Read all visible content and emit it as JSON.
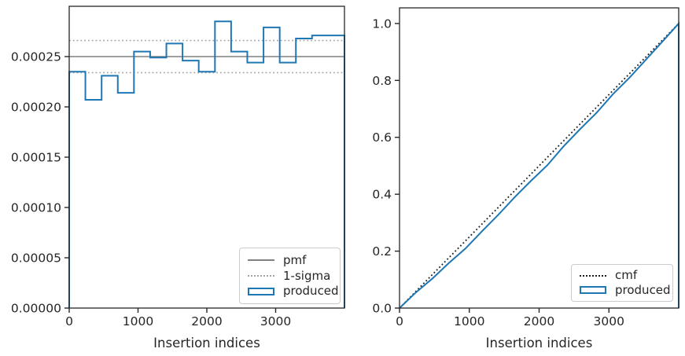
{
  "figure": {
    "background": "#ffffff"
  },
  "colors": {
    "produced": "#1f77b4",
    "pmf": "#808080",
    "sigma": "#a3a3a3",
    "cmf": "#1c1c1c",
    "spine": "#262626",
    "text": "#262626",
    "background": "#ffffff"
  },
  "chart_data": [
    {
      "type": "step",
      "title": "",
      "xlabel": "Insertion indices",
      "ylabel": "",
      "grid": false,
      "xlim": [
        0,
        4000
      ],
      "ylim": [
        0,
        0.0003
      ],
      "xticks": {
        "values": [
          0,
          1000,
          2000,
          3000
        ],
        "labels": [
          "0",
          "1000",
          "2000",
          "3000"
        ]
      },
      "yticks": {
        "values": [
          0,
          5e-05,
          0.0001,
          0.00015,
          0.0002,
          0.00025
        ],
        "labels": [
          "0.00000",
          "0.00005",
          "0.00010",
          "0.00015",
          "0.00020",
          "0.00025"
        ]
      },
      "series": [
        {
          "name": "pmf",
          "style": "hline",
          "linestyle": "solid",
          "color": "#808080",
          "width": 1.5,
          "values": [
            0.00025
          ]
        },
        {
          "name": "1-sigma",
          "style": "hline",
          "linestyle": "dotted",
          "color": "#a3a3a3",
          "width": 1.6,
          "values": [
            0.000234,
            0.000266
          ]
        },
        {
          "name": "produced",
          "style": "step",
          "linestyle": "solid",
          "color": "#1f77b4",
          "width": 2,
          "bin_edges": [
            0,
            235,
            471,
            706,
            941,
            1176,
            1412,
            1647,
            1882,
            2118,
            2353,
            2588,
            2824,
            3059,
            3294,
            3529,
            3765,
            4000
          ],
          "values": [
            0.000235,
            0.000207,
            0.000231,
            0.000214,
            0.000255,
            0.000249,
            0.000263,
            0.000246,
            0.000235,
            0.000285,
            0.000255,
            0.000244,
            0.000279,
            0.000244,
            0.000268,
            0.000271,
            0.000271
          ]
        }
      ],
      "legend": {
        "position": "lower right",
        "entries": [
          {
            "label": "pmf",
            "sample": "solid-line-gray"
          },
          {
            "label": "1-sigma",
            "sample": "dotted-line-gray"
          },
          {
            "label": "produced",
            "sample": "rect-blue"
          }
        ]
      }
    },
    {
      "type": "line",
      "title": "",
      "xlabel": "Insertion indices",
      "ylabel": "",
      "grid": false,
      "xlim": [
        0,
        4000
      ],
      "ylim": [
        0,
        1.055
      ],
      "xticks": {
        "values": [
          0,
          1000,
          2000,
          3000
        ],
        "labels": [
          "0",
          "1000",
          "2000",
          "3000"
        ]
      },
      "yticks": {
        "values": [
          0,
          0.2,
          0.4,
          0.6,
          0.8,
          1.0
        ],
        "labels": [
          "0.0",
          "0.2",
          "0.4",
          "0.6",
          "0.8",
          "1.0"
        ]
      },
      "series": [
        {
          "name": "cmf",
          "style": "line",
          "linestyle": "dotted",
          "color": "#1c1c1c",
          "width": 1.8,
          "x": [
            0,
            4000
          ],
          "y": [
            0,
            1.0
          ]
        },
        {
          "name": "produced",
          "style": "line",
          "linestyle": "solid",
          "color": "#1f77b4",
          "width": 2,
          "close_right": true,
          "x": [
            0,
            235,
            471,
            706,
            941,
            1176,
            1412,
            1647,
            1882,
            2118,
            2353,
            2588,
            2824,
            3059,
            3294,
            3529,
            3765,
            4000
          ],
          "y": [
            0,
            0.055,
            0.1037,
            0.1581,
            0.2084,
            0.2684,
            0.327,
            0.3888,
            0.4467,
            0.502,
            0.569,
            0.629,
            0.6864,
            0.752,
            0.8094,
            0.8725,
            0.9362,
            1.0
          ]
        }
      ],
      "legend": {
        "position": "lower right",
        "entries": [
          {
            "label": "cmf",
            "sample": "dotted-line-dark"
          },
          {
            "label": "produced",
            "sample": "rect-blue"
          }
        ]
      }
    }
  ]
}
